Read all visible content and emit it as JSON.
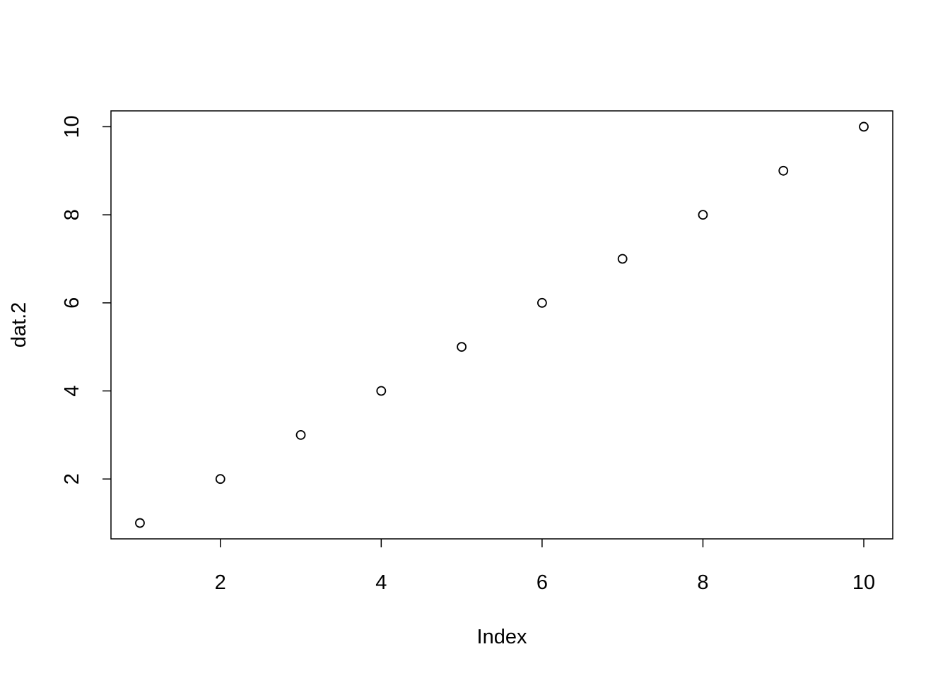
{
  "chart_data": {
    "type": "scatter",
    "title": "",
    "xlabel": "Index",
    "ylabel": "dat.2",
    "x": [
      1,
      2,
      3,
      4,
      5,
      6,
      7,
      8,
      9,
      10
    ],
    "y": [
      1,
      2,
      3,
      4,
      5,
      6,
      7,
      8,
      9,
      10
    ],
    "xlim": [
      0.64,
      10.36
    ],
    "ylim": [
      0.64,
      10.36
    ],
    "xticks": [
      "2",
      "4",
      "6",
      "8",
      "10"
    ],
    "yticks": [
      "2",
      "4",
      "6",
      "8",
      "10"
    ],
    "marker": "open-circle",
    "grid": false,
    "color": "#000000"
  }
}
